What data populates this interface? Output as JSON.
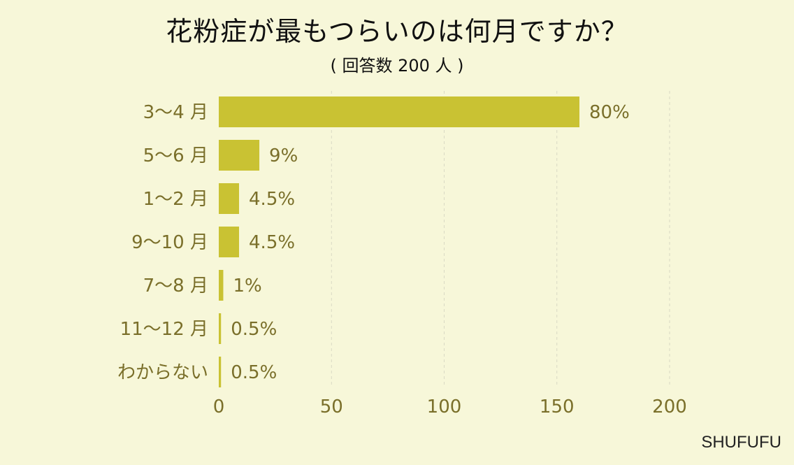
{
  "title": "花粉症が最もつらいのは何月ですか？",
  "subtitle": "( 回答数 200 人 )",
  "brand": "SHUFUFU",
  "colors": {
    "bar": "#c9c233",
    "text": "#7a6f2a",
    "grid": "#d9d9c4",
    "background": "#f7f7d9"
  },
  "chart_data": {
    "type": "bar",
    "orientation": "horizontal",
    "categories": [
      "3〜4 月",
      "5〜6 月",
      "1〜2 月",
      "9〜10 月",
      "7〜8 月",
      "11〜12 月",
      "わからない"
    ],
    "values": [
      160,
      18,
      9,
      9,
      2,
      1,
      1
    ],
    "labels": [
      "80%",
      "9%",
      "4.5%",
      "4.5%",
      "1%",
      "0.5%",
      "0.5%"
    ],
    "xticks": [
      0,
      50,
      100,
      150,
      200
    ],
    "xlim": [
      0,
      200
    ],
    "grid": true
  }
}
